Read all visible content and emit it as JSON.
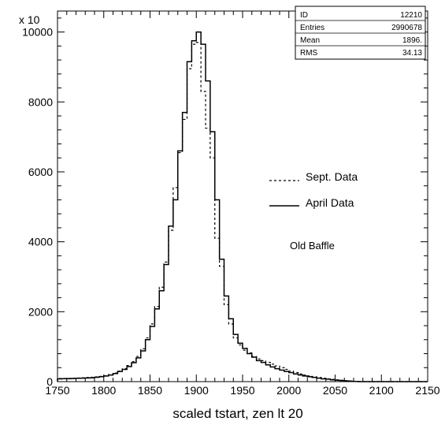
{
  "chart_data": {
    "type": "histogram",
    "xlabel": "scaled tstart, zen lt 20",
    "ylabel": "",
    "y_multiplier_label": "x 10",
    "xlim": [
      1750,
      2150
    ],
    "ylim": [
      0,
      10600
    ],
    "x_ticks": [
      1750,
      1800,
      1850,
      1900,
      1950,
      2000,
      2050,
      2100,
      2150
    ],
    "x_tick_labels": [
      "1750",
      "1800",
      "1850",
      "1900",
      "1950",
      "2000",
      "2050",
      "2100",
      "2150"
    ],
    "y_ticks": [
      0,
      2000,
      4000,
      6000,
      8000,
      10000
    ],
    "y_tick_labels": [
      "0",
      "2000",
      "4000",
      "6000",
      "8000",
      "10000"
    ],
    "grid": false,
    "bin_width": 5,
    "x": [
      1750,
      1755,
      1760,
      1765,
      1770,
      1775,
      1780,
      1785,
      1790,
      1795,
      1800,
      1805,
      1810,
      1815,
      1820,
      1825,
      1830,
      1835,
      1840,
      1845,
      1850,
      1855,
      1860,
      1865,
      1870,
      1875,
      1880,
      1885,
      1890,
      1895,
      1900,
      1905,
      1910,
      1915,
      1920,
      1925,
      1930,
      1935,
      1940,
      1945,
      1950,
      1955,
      1960,
      1965,
      1970,
      1975,
      1980,
      1985,
      1990,
      1995,
      2000,
      2005,
      2010,
      2015,
      2020,
      2025,
      2030,
      2035,
      2040,
      2045,
      2050,
      2055,
      2060,
      2065,
      2070,
      2075,
      2080,
      2085,
      2090,
      2095,
      2100,
      2105,
      2110,
      2115,
      2120,
      2125,
      2130,
      2135,
      2140,
      2145
    ],
    "series": [
      {
        "name": "April Data",
        "style": "solid",
        "values": [
          80,
          85,
          85,
          90,
          95,
          100,
          105,
          110,
          125,
          140,
          160,
          190,
          230,
          290,
          350,
          430,
          540,
          680,
          880,
          1200,
          1580,
          2080,
          2600,
          3350,
          4450,
          5200,
          6600,
          7700,
          9150,
          9750,
          10000,
          9650,
          8600,
          7150,
          5200,
          3500,
          2450,
          1800,
          1350,
          1100,
          950,
          800,
          700,
          600,
          550,
          480,
          420,
          370,
          330,
          290,
          260,
          220,
          190,
          160,
          140,
          120,
          100,
          80,
          70,
          50,
          40,
          30,
          20,
          10,
          5,
          0,
          0,
          0,
          0,
          0,
          0,
          0,
          0,
          0,
          0,
          0,
          0,
          0,
          0,
          0
        ]
      },
      {
        "name": "Sept. Data",
        "style": "dashed",
        "values": [
          90,
          92,
          95,
          100,
          105,
          110,
          118,
          125,
          135,
          150,
          170,
          200,
          245,
          300,
          370,
          460,
          570,
          720,
          940,
          1250,
          1650,
          2150,
          2700,
          3420,
          4330,
          5550,
          6550,
          7500,
          8950,
          9650,
          9700,
          8300,
          7250,
          6400,
          4100,
          3300,
          2200,
          1650,
          1250,
          1050,
          900,
          820,
          720,
          650,
          600,
          550,
          500,
          450,
          400,
          350,
          300,
          260,
          220,
          190,
          165,
          140,
          120,
          100,
          80,
          65,
          50,
          40,
          30,
          20,
          10,
          5,
          2,
          0,
          0,
          0,
          0,
          0,
          0,
          0,
          0,
          0,
          0,
          0,
          0,
          0
        ]
      }
    ],
    "stats_box": [
      {
        "label": "ID",
        "value": "12210"
      },
      {
        "label": "Entries",
        "value": "2990678"
      },
      {
        "label": "Mean",
        "value": "1896."
      },
      {
        "label": "RMS",
        "value": "34.13"
      }
    ],
    "legend": [
      {
        "label": "Sept. Data",
        "style": "dashed"
      },
      {
        "label": "April Data",
        "style": "solid"
      }
    ],
    "annotation": "Old Baffle"
  }
}
